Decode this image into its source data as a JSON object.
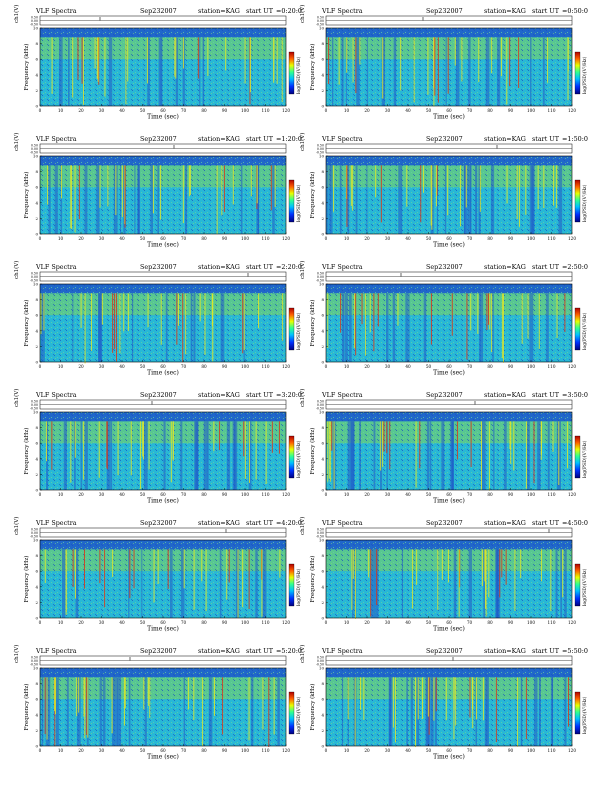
{
  "page": {
    "panel_title_left": "VLF Spectra",
    "date": "Sep232007",
    "station": "station=KAG",
    "start_prefix": "start UT"
  },
  "common_axes": {
    "ch_label": "ch1(V)",
    "ch_ticks": [
      "0.50",
      "0.00",
      "-0.50"
    ],
    "ylabel": "Frequency (kHz)",
    "yticks": [
      "0",
      "2",
      "4",
      "6",
      "8",
      "10"
    ],
    "xlabel": "Time (sec)",
    "xticks": [
      "0",
      "10",
      "20",
      "30",
      "40",
      "50",
      "60",
      "70",
      "80",
      "90",
      "100",
      "110",
      "120"
    ],
    "colorbar_label": "log(PSD)(V²/Hz)",
    "colorbar_ticks": [
      "",
      ""
    ]
  },
  "chart_data": [
    {
      "type": "heatmap",
      "start": "=0:20:0",
      "xlim": [
        0,
        120
      ],
      "ylim": [
        0,
        10
      ],
      "xlabel": "Time (sec)",
      "ylabel": "Frequency (kHz)",
      "colors": {
        "background": "#28b8d6",
        "dark": "#1f58c8",
        "active": "#7fd45a"
      }
    },
    {
      "type": "heatmap",
      "start": "=0:50:0",
      "xlim": [
        0,
        120
      ],
      "ylim": [
        0,
        10
      ],
      "xlabel": "Time (sec)",
      "ylabel": "Frequency (kHz)",
      "colors": {
        "background": "#28b8d6",
        "dark": "#1f58c8",
        "active": "#7fd45a"
      }
    },
    {
      "type": "heatmap",
      "start": "=1:20:0",
      "xlim": [
        0,
        120
      ],
      "ylim": [
        0,
        10
      ],
      "xlabel": "Time (sec)",
      "ylabel": "Frequency (kHz)",
      "colors": {
        "background": "#28b8d6",
        "dark": "#1f58c8",
        "active": "#7fd45a"
      }
    },
    {
      "type": "heatmap",
      "start": "=1:50:0",
      "xlim": [
        0,
        120
      ],
      "ylim": [
        0,
        10
      ],
      "xlabel": "Time (sec)",
      "ylabel": "Frequency (kHz)",
      "colors": {
        "background": "#28b8d6",
        "dark": "#1f58c8",
        "active": "#7fd45a"
      }
    },
    {
      "type": "heatmap",
      "start": "=2:20:0",
      "xlim": [
        0,
        120
      ],
      "ylim": [
        0,
        10
      ],
      "xlabel": "Time (sec)",
      "ylabel": "Frequency (kHz)",
      "colors": {
        "background": "#28b8d6",
        "dark": "#1f58c8",
        "active": "#7fd45a"
      }
    },
    {
      "type": "heatmap",
      "start": "=2:50:0",
      "xlim": [
        0,
        120
      ],
      "ylim": [
        0,
        10
      ],
      "xlabel": "Time (sec)",
      "ylabel": "Frequency (kHz)",
      "colors": {
        "background": "#28b8d6",
        "dark": "#1f58c8",
        "active": "#7fd45a"
      }
    },
    {
      "type": "heatmap",
      "start": "=3:20:0",
      "xlim": [
        0,
        120
      ],
      "ylim": [
        0,
        10
      ],
      "xlabel": "Time (sec)",
      "ylabel": "Frequency (kHz)",
      "colors": {
        "background": "#28b8d6",
        "dark": "#1f58c8",
        "active": "#7fd45a"
      }
    },
    {
      "type": "heatmap",
      "start": "=3:50:0",
      "xlim": [
        0,
        120
      ],
      "ylim": [
        0,
        10
      ],
      "xlabel": "Time (sec)",
      "ylabel": "Frequency (kHz)",
      "colors": {
        "background": "#28b8d6",
        "dark": "#1f58c8",
        "active": "#7fd45a"
      }
    },
    {
      "type": "heatmap",
      "start": "=4:20:0",
      "xlim": [
        0,
        120
      ],
      "ylim": [
        0,
        10
      ],
      "xlabel": "Time (sec)",
      "ylabel": "Frequency (kHz)",
      "colors": {
        "background": "#28b8d6",
        "dark": "#1f58c8",
        "active": "#7fd45a"
      }
    },
    {
      "type": "heatmap",
      "start": "=4:50:0",
      "xlim": [
        0,
        120
      ],
      "ylim": [
        0,
        10
      ],
      "xlabel": "Time (sec)",
      "ylabel": "Frequency (kHz)",
      "colors": {
        "background": "#28b8d6",
        "dark": "#1f58c8",
        "active": "#7fd45a"
      }
    },
    {
      "type": "heatmap",
      "start": "=5:20:0",
      "xlim": [
        0,
        120
      ],
      "ylim": [
        0,
        10
      ],
      "xlabel": "Time (sec)",
      "ylabel": "Frequency (kHz)",
      "colors": {
        "background": "#28b8d6",
        "dark": "#1f58c8",
        "active": "#7fd45a"
      }
    },
    {
      "type": "heatmap",
      "start": "=5:50:0",
      "xlim": [
        0,
        120
      ],
      "ylim": [
        0,
        10
      ],
      "xlabel": "Time (sec)",
      "ylabel": "Frequency (kHz)",
      "colors": {
        "background": "#28b8d6",
        "dark": "#1f58c8",
        "active": "#7fd45a"
      }
    }
  ]
}
